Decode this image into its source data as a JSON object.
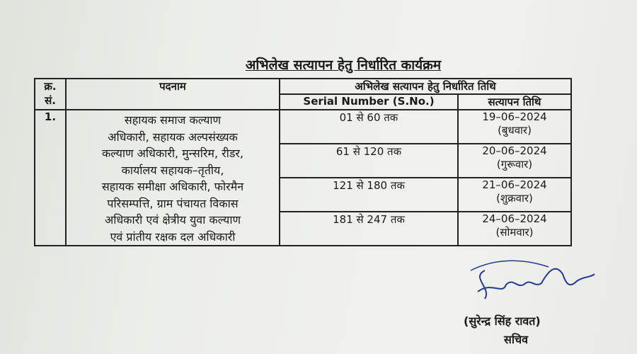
{
  "title": "अभिलेख सत्यापन हेतु निर्धारित कार्यक्रम",
  "table": {
    "headers": {
      "sno": "क्र. सं.",
      "post": "पदनाम",
      "schedule": "अभिलेख सत्यापन हेतु निर्धारित तिथि",
      "serial": "Serial Number (S.No.)",
      "date": "सत्यापन तिथि"
    },
    "row": {
      "sno": "1.",
      "post": [
        "सहायक समाज कल्याण",
        "अधिकारी, सहायक अल्पसंख्यक",
        "कल्याण अधिकारी, मुन्सरिम, रीडर,",
        "कार्यालय सहायक–तृतीय,",
        "सहायक समीक्षा अधिकारी, फोरमैन",
        "परिसम्पत्ति, ग्राम पंचायत विकास",
        "अधिकारी एवं क्षेत्रीय युवा कल्याण",
        "एवं प्रांतीय रक्षक दल अधिकारी"
      ]
    },
    "slots": [
      {
        "range": "01 से 60 तक",
        "date": "19–06–2024",
        "day": "(बुधवार)"
      },
      {
        "range": "61 से 120 तक",
        "date": "20–06–2024",
        "day": "(गुरूवार)"
      },
      {
        "range": "121 से 180 तक",
        "date": "21–06–2024",
        "day": "(शुक्रवार)"
      },
      {
        "range": "181 से 247 तक",
        "date": "24–06–2024",
        "day": "(सोमवार)"
      }
    ]
  },
  "signatory": {
    "name": "(सुरेन्द्र सिंह रावत)",
    "designation": "सचिव"
  }
}
